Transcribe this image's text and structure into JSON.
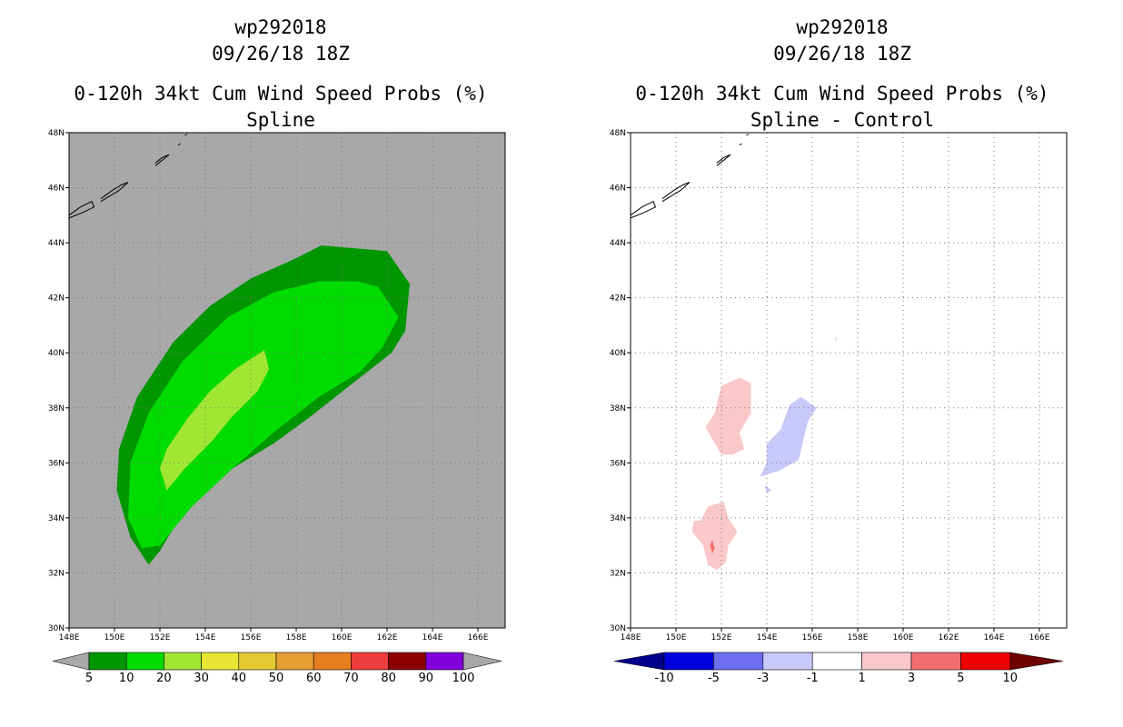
{
  "chart_data": [
    {
      "type": "contour-map",
      "storm_id": "wp292018",
      "datetime": "09/26/18 18Z",
      "title": "0-120h 34kt Cum Wind Speed Probs (%)",
      "subtitle": "Spline",
      "lon_ticks": [
        "148E",
        "150E",
        "152E",
        "154E",
        "156E",
        "158E",
        "160E",
        "162E",
        "164E",
        "166E"
      ],
      "lat_ticks": [
        "30N",
        "32N",
        "34N",
        "36N",
        "38N",
        "40N",
        "42N",
        "44N",
        "46N",
        "48N"
      ],
      "lon_range": [
        148,
        167.2
      ],
      "lat_range": [
        30,
        48
      ],
      "background": "#a8a8a8",
      "gridlines": "dotted",
      "colorbar": {
        "levels": [
          "5",
          "10",
          "20",
          "30",
          "40",
          "50",
          "60",
          "70",
          "80",
          "90",
          "100"
        ],
        "colors": [
          "#009600",
          "#00dc00",
          "#a0e632",
          "#e6e632",
          "#e6c832",
          "#e6a032",
          "#e67d1e",
          "#f03c3c",
          "#8c0000",
          "#8200dc"
        ],
        "ends": "#a8a8a8"
      },
      "contours": [
        {
          "level": 5,
          "color": "#009600",
          "lonlat": [
            [
              151.5,
              32.3
            ],
            [
              150.7,
              33.3
            ],
            [
              150.1,
              35
            ],
            [
              150.2,
              36.5
            ],
            [
              151.0,
              38.4
            ],
            [
              152.6,
              40.4
            ],
            [
              154.2,
              41.7
            ],
            [
              156.0,
              42.7
            ],
            [
              157.9,
              43.4
            ],
            [
              159.1,
              43.9
            ],
            [
              160.6,
              43.8
            ],
            [
              162.0,
              43.7
            ],
            [
              163.0,
              42.5
            ],
            [
              162.8,
              40.8
            ],
            [
              162.2,
              40.0
            ],
            [
              160.5,
              38.9
            ],
            [
              158.5,
              37.6
            ],
            [
              157.0,
              36.7
            ],
            [
              155.0,
              35.7
            ],
            [
              153.3,
              34.6
            ],
            [
              152.0,
              32.8
            ]
          ]
        },
        {
          "level": 10,
          "color": "#00dc00",
          "lonlat": [
            [
              151.2,
              32.9
            ],
            [
              150.6,
              34.0
            ],
            [
              150.7,
              36.0
            ],
            [
              151.5,
              37.8
            ],
            [
              153.0,
              39.7
            ],
            [
              155.0,
              41.3
            ],
            [
              157.0,
              42.2
            ],
            [
              159.0,
              42.6
            ],
            [
              160.7,
              42.6
            ],
            [
              161.6,
              42.4
            ],
            [
              162.5,
              41.3
            ],
            [
              161.8,
              40.2
            ],
            [
              160.8,
              39.3
            ],
            [
              159.0,
              38.4
            ],
            [
              157.0,
              37.1
            ],
            [
              155.2,
              35.8
            ],
            [
              153.4,
              34.4
            ],
            [
              152.0,
              33.0
            ]
          ]
        },
        {
          "level": 20,
          "color": "#a0e632",
          "lonlat": [
            [
              152.3,
              35.0
            ],
            [
              152.0,
              35.8
            ],
            [
              152.3,
              36.5
            ],
            [
              153.2,
              37.6
            ],
            [
              154.2,
              38.6
            ],
            [
              155.3,
              39.4
            ],
            [
              156.6,
              40.1
            ],
            [
              156.8,
              39.4
            ],
            [
              156.3,
              38.6
            ],
            [
              155.2,
              37.7
            ],
            [
              154.3,
              36.8
            ],
            [
              153.1,
              35.8
            ]
          ]
        }
      ],
      "coastlines": [
        [
          [
            148.0,
            45.0
          ],
          [
            148.5,
            45.3
          ],
          [
            149.0,
            45.5
          ],
          [
            149.1,
            45.3
          ],
          [
            148.6,
            45.1
          ],
          [
            148.0,
            44.9
          ]
        ],
        [
          [
            149.4,
            45.6
          ],
          [
            149.9,
            45.9
          ],
          [
            150.3,
            46.1
          ],
          [
            150.6,
            46.2
          ],
          [
            150.2,
            45.9
          ],
          [
            149.8,
            45.7
          ],
          [
            149.4,
            45.5
          ]
        ],
        [
          [
            151.8,
            46.9
          ],
          [
            152.1,
            47.1
          ],
          [
            152.4,
            47.2
          ],
          [
            152.1,
            47.0
          ],
          [
            151.8,
            46.8
          ]
        ],
        [
          [
            152.8,
            47.55
          ],
          [
            152.9,
            47.6
          ]
        ],
        [
          [
            153.1,
            47.9
          ],
          [
            153.2,
            47.95
          ]
        ]
      ]
    },
    {
      "type": "contour-map",
      "storm_id": "wp292018",
      "datetime": "09/26/18 18Z",
      "title": "0-120h 34kt Cum Wind Speed Probs (%)",
      "subtitle": "Spline - Control",
      "lon_ticks": [
        "148E",
        "150E",
        "152E",
        "154E",
        "156E",
        "158E",
        "160E",
        "162E",
        "164E",
        "166E"
      ],
      "lat_ticks": [
        "30N",
        "32N",
        "34N",
        "36N",
        "38N",
        "40N",
        "42N",
        "44N",
        "46N",
        "48N"
      ],
      "lon_range": [
        148,
        167.2
      ],
      "lat_range": [
        30,
        48
      ],
      "background": "#ffffff",
      "gridlines": "dotted",
      "colorbar": {
        "levels": [
          "-10",
          "-5",
          "-3",
          "-1",
          "1",
          "3",
          "5",
          "10"
        ],
        "colors": [
          "#0000dc",
          "#6e6ef0",
          "#c8c8fa",
          "#ffffff",
          "#fac8c8",
          "#f06e6e",
          "#f00000"
        ],
        "end_low": "#00008c",
        "end_high": "#6e0000"
      },
      "contours": [
        {
          "level": 1,
          "color": "#fac8c8",
          "lonlat": [
            [
              151.7,
              37.8
            ],
            [
              152.0,
              38.8
            ],
            [
              152.8,
              39.1
            ],
            [
              153.3,
              38.9
            ],
            [
              153.3,
              37.8
            ],
            [
              152.8,
              37.1
            ],
            [
              153.0,
              36.5
            ],
            [
              152.5,
              36.3
            ],
            [
              152.0,
              36.3
            ],
            [
              151.3,
              37.3
            ]
          ]
        },
        {
          "level": -1,
          "color": "#c8c8fa",
          "lonlat": [
            [
              153.7,
              35.5
            ],
            [
              154.5,
              35.7
            ],
            [
              155.4,
              36.1
            ],
            [
              155.8,
              37.5
            ],
            [
              156.2,
              38.0
            ],
            [
              155.5,
              38.4
            ],
            [
              155.0,
              38.1
            ],
            [
              154.6,
              37.2
            ],
            [
              154.0,
              36.7
            ],
            [
              154.0,
              36.0
            ]
          ]
        },
        {
          "level": -1,
          "color": "#c8c8fa",
          "lonlat": [
            [
              153.9,
              35.2
            ],
            [
              154.2,
              35.0
            ],
            [
              154.0,
              34.9
            ]
          ]
        },
        {
          "level": -1,
          "color": "#c8c8fa",
          "lonlat": [
            [
              157.0,
              40.5
            ],
            [
              157.1,
              40.6
            ],
            [
              157.0,
              40.4
            ]
          ]
        },
        {
          "level": 1,
          "color": "#fac8c8",
          "lonlat": [
            [
              151.1,
              33.9
            ],
            [
              151.4,
              34.4
            ],
            [
              152.1,
              34.6
            ],
            [
              152.3,
              34.0
            ],
            [
              152.7,
              33.5
            ],
            [
              152.3,
              33.0
            ],
            [
              152.2,
              32.4
            ],
            [
              151.8,
              32.1
            ],
            [
              151.4,
              32.3
            ],
            [
              151.2,
              33.0
            ],
            [
              150.7,
              33.5
            ],
            [
              150.8,
              33.9
            ]
          ]
        },
        {
          "level": 3,
          "color": "#f06e6e",
          "lonlat": [
            [
              151.5,
              33.0
            ],
            [
              151.6,
              33.2
            ],
            [
              151.7,
              32.9
            ],
            [
              151.6,
              32.7
            ]
          ]
        }
      ],
      "coastlines": [
        [
          [
            148.0,
            45.0
          ],
          [
            148.5,
            45.3
          ],
          [
            149.0,
            45.5
          ],
          [
            149.1,
            45.3
          ],
          [
            148.6,
            45.1
          ],
          [
            148.0,
            44.9
          ]
        ],
        [
          [
            149.4,
            45.6
          ],
          [
            149.9,
            45.9
          ],
          [
            150.3,
            46.1
          ],
          [
            150.6,
            46.2
          ],
          [
            150.2,
            45.9
          ],
          [
            149.8,
            45.7
          ],
          [
            149.4,
            45.5
          ]
        ],
        [
          [
            151.8,
            46.9
          ],
          [
            152.1,
            47.1
          ],
          [
            152.4,
            47.2
          ],
          [
            152.1,
            47.0
          ],
          [
            151.8,
            46.8
          ]
        ],
        [
          [
            152.8,
            47.55
          ],
          [
            152.9,
            47.6
          ]
        ],
        [
          [
            153.1,
            47.9
          ],
          [
            153.2,
            47.95
          ]
        ]
      ]
    }
  ]
}
